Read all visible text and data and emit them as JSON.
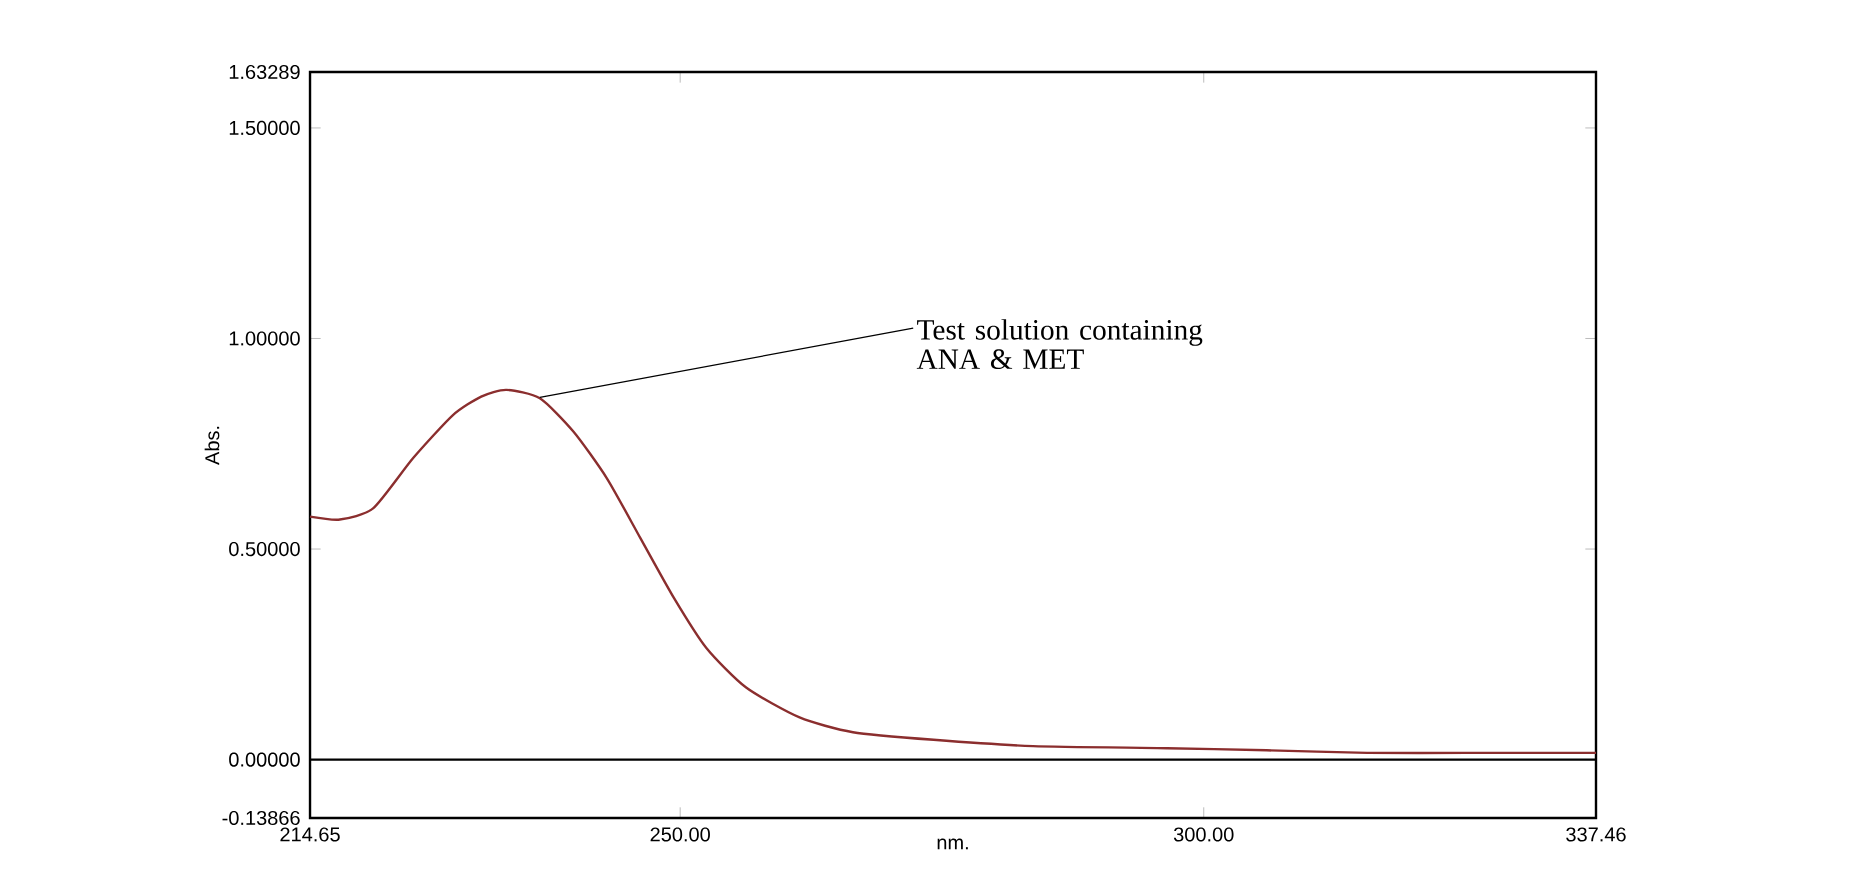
{
  "chart_data": {
    "type": "line",
    "xlabel": "nm.",
    "ylabel": "Abs.",
    "xlim": [
      214.65,
      337.46
    ],
    "ylim": [
      -0.13866,
      1.63289
    ],
    "xticks": [
      {
        "value": 214.65,
        "label": "214.65"
      },
      {
        "value": 250,
        "label": "250.00"
      },
      {
        "value": 300,
        "label": "300.00"
      },
      {
        "value": 337.46,
        "label": "337.46"
      }
    ],
    "yticks": [
      {
        "value": -0.13866,
        "label": "-0.13866"
      },
      {
        "value": 0,
        "label": "0.00000"
      },
      {
        "value": 0.5,
        "label": "0.50000"
      },
      {
        "value": 1,
        "label": "1.00000"
      },
      {
        "value": 1.5,
        "label": "1.50000"
      },
      {
        "value": 1.63289,
        "label": "1.63289"
      }
    ],
    "grid": false,
    "series": [
      {
        "color": "#8b2e2e",
        "x": [
          214.65,
          217.5,
          220.7,
          224.5,
          228.3,
          231.0,
          233.4,
          236.6,
          239.8,
          243.0,
          246.2,
          249.4,
          252.5,
          256.3,
          261.4,
          266.5,
          274.2,
          283.7,
          296.5,
          306.0,
          315.6,
          325.1,
          337.46
        ],
        "values": [
          0.577,
          0.57,
          0.597,
          0.716,
          0.818,
          0.862,
          0.878,
          0.858,
          0.779,
          0.668,
          0.526,
          0.384,
          0.265,
          0.171,
          0.1,
          0.065,
          0.047,
          0.032,
          0.027,
          0.022,
          0.016,
          0.016,
          0.016
        ]
      }
    ],
    "ref_lines": [
      {
        "axis": "y",
        "value": 0,
        "color": "#000000"
      }
    ],
    "annotations": [
      {
        "text": "Test solution containing ANA & MET",
        "x": 236.6,
        "y": 0.86
      }
    ]
  }
}
